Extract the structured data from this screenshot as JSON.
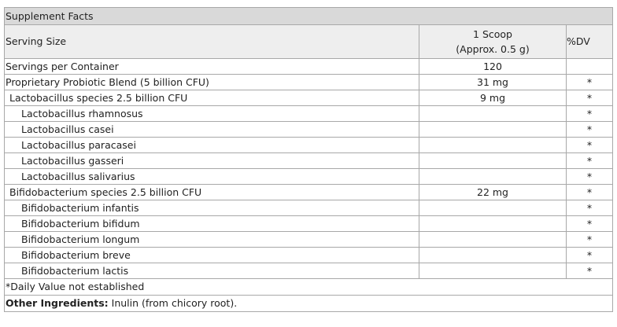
{
  "title": "Supplement Facts",
  "header": {
    "serving_size_label": "Serving Size",
    "serving_line1": "1 Scoop",
    "serving_line2": "(Approx. 0.5 g)",
    "dv_label": "%DV"
  },
  "rows": [
    {
      "name": "Servings per Container",
      "amount": "120",
      "dv": ""
    },
    {
      "name": "Proprietary Probiotic Blend (5 billion CFU)",
      "amount": "31 mg",
      "dv": "*"
    },
    {
      "name": "Lactobacillus species 2.5 billion CFU",
      "amount": "9 mg",
      "dv": "*"
    },
    {
      "name": "Lactobacillus rhamnosus",
      "amount": "",
      "dv": "*"
    },
    {
      "name": "Lactobacillus casei",
      "amount": "",
      "dv": "*"
    },
    {
      "name": "Lactobacillus paracasei",
      "amount": "",
      "dv": "*"
    },
    {
      "name": "Lactobacillus gasseri",
      "amount": "",
      "dv": "*"
    },
    {
      "name": "Lactobacillus salivarius",
      "amount": "",
      "dv": "*"
    },
    {
      "name": "Bifidobacterium species 2.5 billion CFU",
      "amount": "22 mg",
      "dv": "*"
    },
    {
      "name": "Bifidobacterium infantis",
      "amount": "",
      "dv": "*"
    },
    {
      "name": "Bifidobacterium bifidum",
      "amount": "",
      "dv": "*"
    },
    {
      "name": "Bifidobacterium longum",
      "amount": "",
      "dv": "*"
    },
    {
      "name": "Bifidobacterium breve",
      "amount": "",
      "dv": "*"
    },
    {
      "name": "Bifidobacterium lactis",
      "amount": "",
      "dv": "*"
    }
  ],
  "footer": {
    "daily_value_note": "*Daily Value not established",
    "other_ingredients_label": "Other Ingredients:",
    "other_ingredients_text": " Inulin (from chicory root)."
  }
}
